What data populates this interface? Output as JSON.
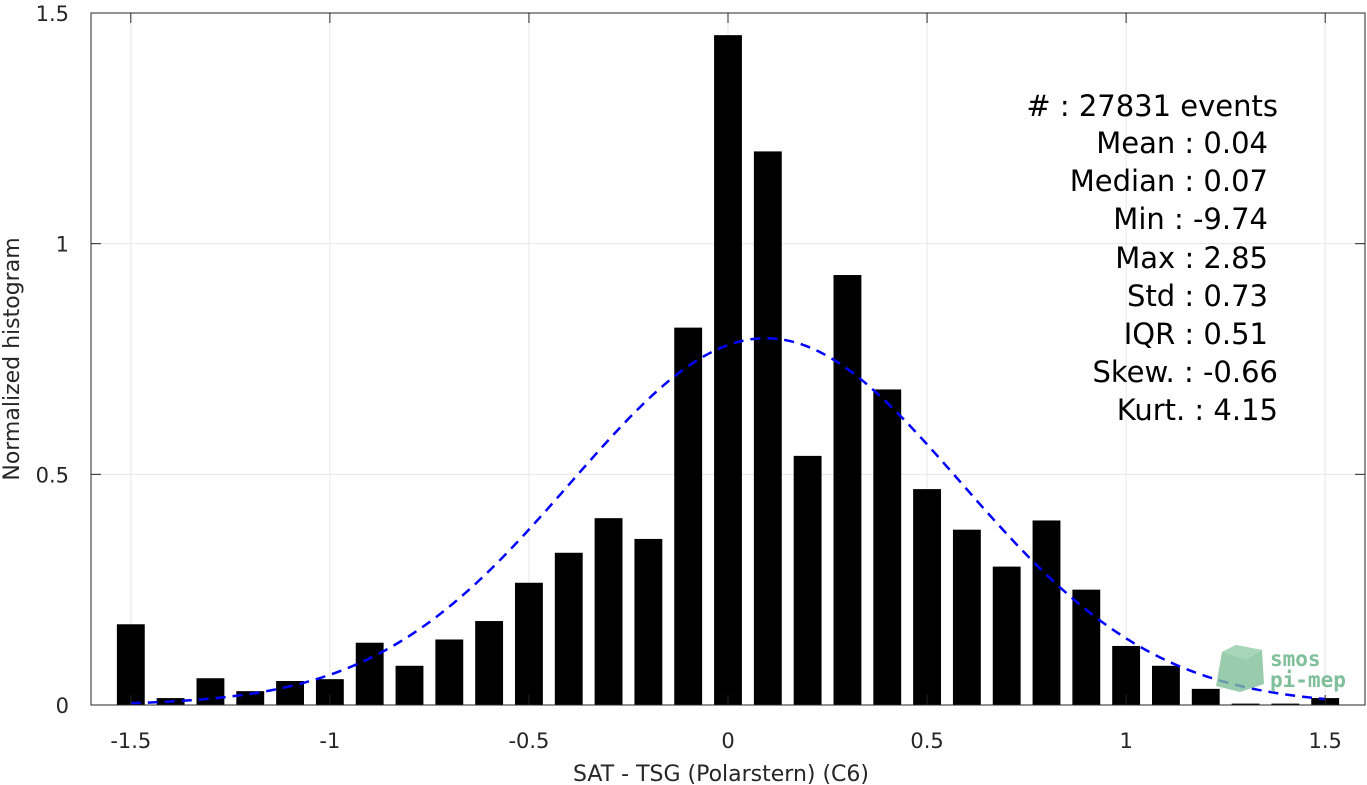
{
  "chart_data": {
    "type": "bar",
    "xlabel": "SAT - TSG (Polarstern) (C6)",
    "ylabel": "Normalized histogram",
    "xlim": [
      -1.6,
      1.6
    ],
    "ylim": [
      0,
      1.5
    ],
    "xticks": [
      -1.5,
      -1,
      -0.5,
      0,
      0.5,
      1,
      1.5
    ],
    "xtick_labels": [
      "-1.5",
      "-1",
      "-0.5",
      "0",
      "0.5",
      "1",
      "1.5"
    ],
    "yticks": [
      0,
      0.5,
      1,
      1.5
    ],
    "ytick_labels": [
      "0",
      "0.5",
      "1",
      "1.5"
    ],
    "grid": true,
    "bar_width": 0.07,
    "x": [
      -1.5,
      -1.4,
      -1.3,
      -1.2,
      -1.1,
      -1.0,
      -0.9,
      -0.8,
      -0.7,
      -0.6,
      -0.5,
      -0.4,
      -0.3,
      -0.2,
      -0.1,
      0.0,
      0.1,
      0.2,
      0.3,
      0.4,
      0.5,
      0.6,
      0.7,
      0.8,
      0.9,
      1.0,
      1.1,
      1.2,
      1.3,
      1.4,
      1.5
    ],
    "values": [
      0.175,
      0.015,
      0.058,
      0.03,
      0.052,
      0.056,
      0.135,
      0.085,
      0.142,
      0.182,
      0.265,
      0.33,
      0.405,
      0.36,
      0.818,
      1.452,
      1.2,
      0.54,
      0.932,
      0.684,
      0.468,
      0.38,
      0.3,
      0.4,
      0.25,
      0.128,
      0.085,
      0.035,
      0.003,
      0.003,
      0.015
    ],
    "bar_color": "#000000",
    "fit": {
      "type": "normal",
      "mean": 0.095,
      "std": 0.49,
      "peak": 0.795,
      "style": "dashed",
      "color": "#0000ff"
    },
    "annotations": [
      "#  : 27831 events",
      "Mean : 0.04",
      "Median : 0.07",
      "Min : -9.74",
      "Max : 2.85",
      "Std : 0.73",
      "IQR : 0.51",
      "Skew. : -0.66",
      "Kurt. : 4.15"
    ]
  },
  "logo": {
    "line1": "smos",
    "line2": "pi-mep",
    "color": "#7fbf99"
  }
}
